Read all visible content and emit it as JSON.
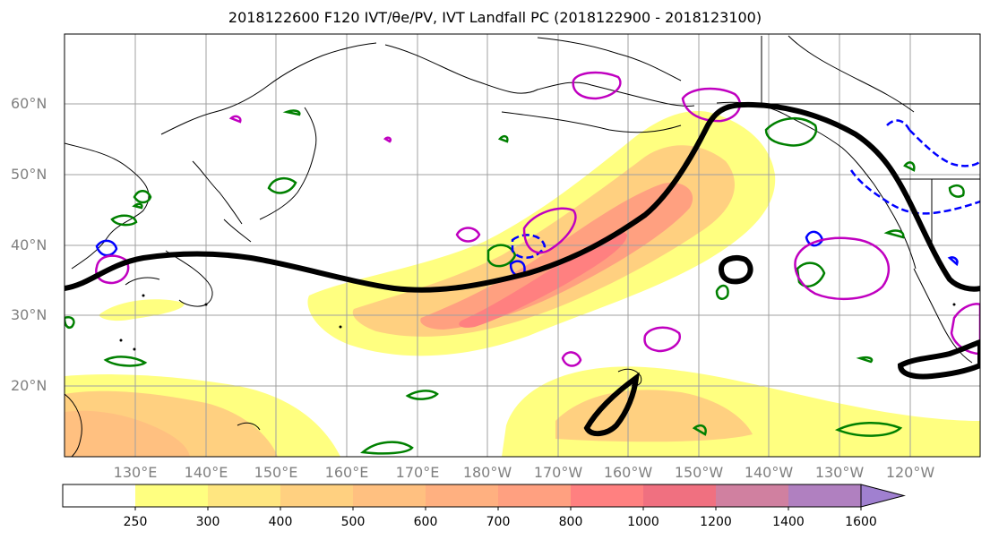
{
  "title": "2018122600 F120 IVT/θe/PV, IVT Landfall PC (2018122900 - 2018123100)",
  "map": {
    "lat_labels": [
      "60°N",
      "50°N",
      "40°N",
      "30°N",
      "20°N"
    ],
    "lon_labels": [
      "130°E",
      "140°E",
      "150°E",
      "160°E",
      "170°E",
      "180°W",
      "170°W",
      "160°W",
      "150°W",
      "140°W",
      "130°W",
      "120°W"
    ],
    "grid": true,
    "colors": {
      "ivt_fill_yellow": "#ffff80",
      "ivt_fill_orange": "#ffc080",
      "ivt_fill_red": "#ff8080",
      "contour_black": "#000000",
      "contour_green": "#008000",
      "contour_blue": "#0000ff",
      "contour_magenta": "#c000c0",
      "grid": "#a0a0a0",
      "label": "#808080"
    }
  },
  "colorbar": {
    "levels": [
      "250",
      "300",
      "400",
      "500",
      "600",
      "700",
      "800",
      "1000",
      "1200",
      "1400",
      "1600"
    ],
    "colors": [
      "#ffffff",
      "#ffff80",
      "#ffe680",
      "#ffd080",
      "#ffc080",
      "#ffb080",
      "#ffa080",
      "#ff8080",
      "#f07080",
      "#d080a0",
      "#b080c0",
      "#a080d0"
    ]
  }
}
